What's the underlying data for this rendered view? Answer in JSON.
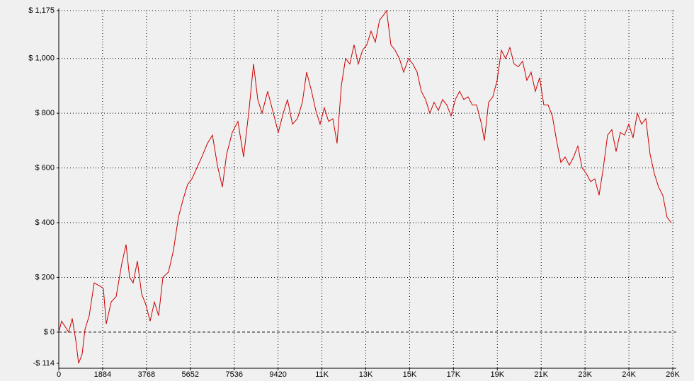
{
  "chart_data": {
    "type": "line",
    "color": "#cc0000",
    "grid": true,
    "xlim": [
      0,
      26376
    ],
    "ylim": [
      -114,
      1175
    ],
    "xticks": [
      0,
      1884,
      3768,
      5652,
      7536,
      9420,
      {
        "value": 11304,
        "label": "11K"
      },
      {
        "value": 13188,
        "label": "13K"
      },
      {
        "value": 15072,
        "label": "15K"
      },
      {
        "value": 16956,
        "label": "17K"
      },
      {
        "value": 18840,
        "label": "19K"
      },
      {
        "value": 20724,
        "label": "21K"
      },
      {
        "value": 22608,
        "label": "23K"
      },
      {
        "value": 24492,
        "label": "24K"
      },
      {
        "value": 26376,
        "label": "26K"
      }
    ],
    "yticks": [
      {
        "value": -114,
        "label": "-$ 114"
      },
      {
        "value": 0,
        "label": "$ 0"
      },
      {
        "value": 200,
        "label": "$ 200"
      },
      {
        "value": 400,
        "label": "$ 400"
      },
      {
        "value": 600,
        "label": "$ 600"
      },
      {
        "value": 800,
        "label": "$ 800"
      },
      {
        "value": 1000,
        "label": "$ 1,000"
      },
      {
        "value": 1175,
        "label": "$ 1,175"
      }
    ],
    "x": [
      0,
      122,
      274,
      426,
      578,
      730,
      852,
      1004,
      1126,
      1308,
      1521,
      1734,
      1916,
      2038,
      2251,
      2464,
      2707,
      2890,
      3042,
      3194,
      3377,
      3559,
      3742,
      3924,
      4107,
      4289,
      4472,
      4715,
      4928,
      5141,
      5324,
      5536,
      5719,
      5932,
      6145,
      6388,
      6601,
      6814,
      7027,
      7210,
      7453,
      7696,
      7940,
      8183,
      8366,
      8548,
      8731,
      8974,
      9217,
      9430,
      9643,
      9826,
      10039,
      10252,
      10464,
      10647,
      10860,
      11042,
      11225,
      11408,
      11590,
      11773,
      11955,
      12138,
      12320,
      12503,
      12685,
      12868,
      13050,
      13233,
      13415,
      13598,
      13780,
      13963,
      14084,
      14267,
      14450,
      14632,
      14815,
      15027,
      15210,
      15393,
      15575,
      15758,
      15940,
      16123,
      16305,
      16488,
      16670,
      16853,
      17035,
      17218,
      17400,
      17583,
      17765,
      17948,
      18161,
      18282,
      18465,
      18647,
      18830,
      19013,
      19195,
      19378,
      19560,
      19743,
      19925,
      20108,
      20290,
      20473,
      20655,
      20838,
      21020,
      21203,
      21385,
      21568,
      21750,
      21933,
      22115,
      22298,
      22480,
      22663,
      22845,
      23028,
      23210,
      23393,
      23576,
      23758,
      23941,
      24123,
      24306,
      24488,
      24671,
      24853,
      25036,
      25218,
      25401,
      25583,
      25766,
      25948,
      26131,
      26313
    ],
    "values": [
      0,
      40,
      20,
      0,
      50,
      -30,
      -114,
      -80,
      10,
      60,
      180,
      170,
      160,
      30,
      110,
      130,
      250,
      320,
      200,
      180,
      260,
      140,
      100,
      40,
      110,
      60,
      200,
      220,
      300,
      420,
      480,
      540,
      560,
      600,
      640,
      690,
      720,
      610,
      530,
      650,
      730,
      770,
      640,
      820,
      980,
      850,
      800,
      880,
      800,
      730,
      800,
      850,
      760,
      780,
      840,
      950,
      880,
      810,
      760,
      820,
      770,
      780,
      690,
      900,
      1000,
      980,
      1050,
      980,
      1030,
      1050,
      1100,
      1060,
      1140,
      1160,
      1175,
      1050,
      1030,
      1000,
      950,
      1000,
      980,
      950,
      880,
      850,
      800,
      840,
      810,
      850,
      830,
      790,
      850,
      880,
      850,
      860,
      830,
      830,
      760,
      700,
      840,
      860,
      920,
      1030,
      1000,
      1040,
      980,
      970,
      990,
      920,
      950,
      880,
      930,
      830,
      830,
      790,
      700,
      620,
      640,
      610,
      640,
      680,
      600,
      580,
      550,
      560,
      500,
      600,
      720,
      740,
      660,
      730,
      720,
      760,
      710,
      800,
      760,
      780,
      650,
      580,
      530,
      500,
      420,
      400
    ]
  }
}
